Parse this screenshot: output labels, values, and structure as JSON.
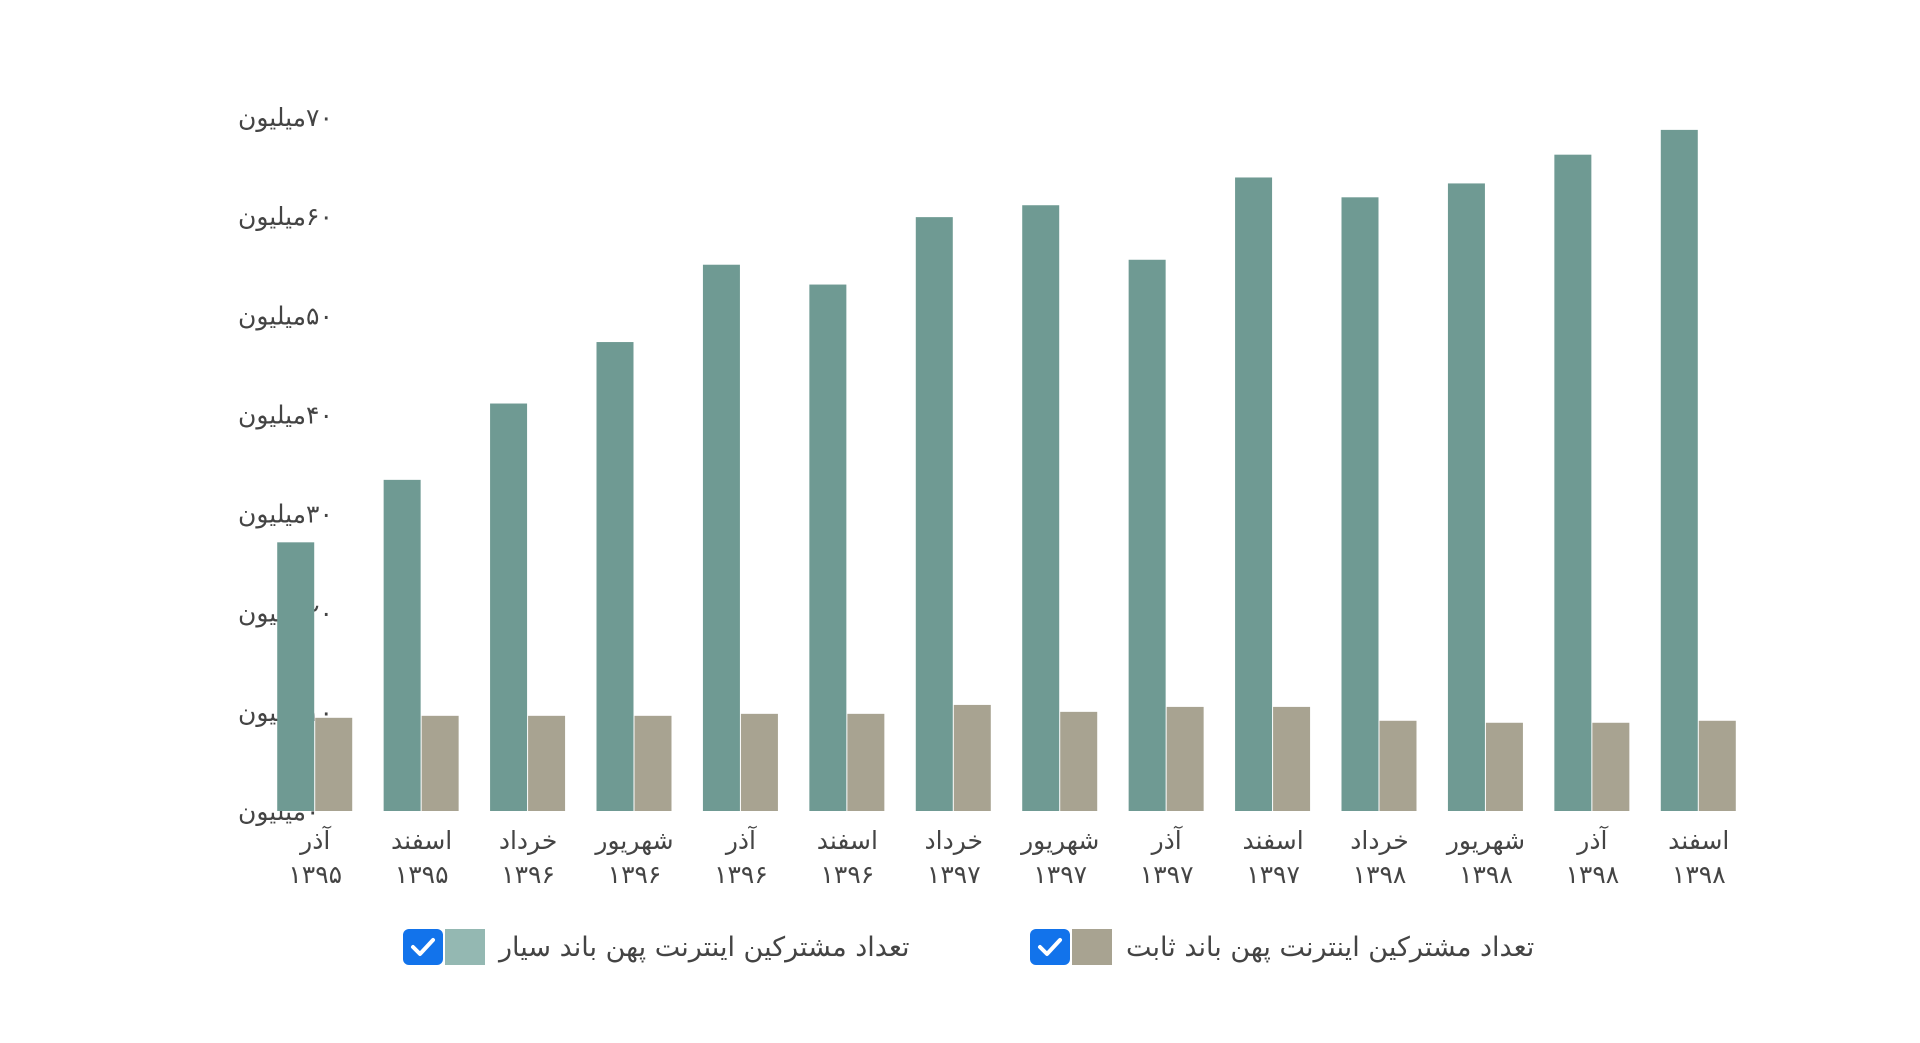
{
  "chart_data": {
    "type": "bar",
    "categories": [
      "آذر ۱۳۹۵",
      "اسفند ۱۳۹۵",
      "خرداد ۱۳۹۶",
      "شهریور ۱۳۹۶",
      "آذر ۱۳۹۶",
      "اسفند ۱۳۹۶",
      "خرداد ۱۳۹۷",
      "شهریور ۱۳۹۷",
      "آذر ۱۳۹۷",
      "اسفند ۱۳۹۷",
      "خرداد ۱۳۹۸",
      "شهریور ۱۳۹۸",
      "آذر ۱۳۹۸",
      "اسفند ۱۳۹۸"
    ],
    "category_lines": [
      [
        "آذر",
        "۱۳۹۵"
      ],
      [
        "اسفند",
        "۱۳۹۵"
      ],
      [
        "خرداد",
        "۱۳۹۶"
      ],
      [
        "شهریور",
        "۱۳۹۶"
      ],
      [
        "آذر",
        "۱۳۹۶"
      ],
      [
        "اسفند",
        "۱۳۹۶"
      ],
      [
        "خرداد",
        "۱۳۹۷"
      ],
      [
        "شهریور",
        "۱۳۹۷"
      ],
      [
        "آذر",
        "۱۳۹۷"
      ],
      [
        "اسفند",
        "۱۳۹۷"
      ],
      [
        "خرداد",
        "۱۳۹۸"
      ],
      [
        "شهریور",
        "۱۳۹۸"
      ],
      [
        "آذر",
        "۱۳۹۸"
      ],
      [
        "اسفند",
        "۱۳۹۸"
      ]
    ],
    "series": [
      {
        "name": "تعداد مشترکین اینترنت پهن باند سیار",
        "color": "#6f9a93",
        "values": [
          27.1,
          33.4,
          41.1,
          47.3,
          55.1,
          53.1,
          59.9,
          61.1,
          55.6,
          63.9,
          61.9,
          63.3,
          66.2,
          68.7
        ]
      },
      {
        "name": "تعداد مشترکین اینترنت پهن باند ثابت",
        "color": "#a8a391",
        "values": [
          9.4,
          9.6,
          9.6,
          9.6,
          9.8,
          9.8,
          10.7,
          10.0,
          10.5,
          10.5,
          9.1,
          8.9,
          8.9,
          9.1
        ]
      }
    ],
    "y_unit": "million",
    "ylim": [
      0,
      70
    ],
    "yticks": [
      0,
      10,
      20,
      30,
      40,
      50,
      60,
      70
    ],
    "ytick_labels": [
      "۰میلیون",
      "۱۰میلیون",
      "۲۰میلیون",
      "۳۰میلیون",
      "۴۰میلیون",
      "۵۰میلیون",
      "۶۰میلیون",
      "۷۰میلیون"
    ],
    "grid": false,
    "legend_position": "bottom"
  },
  "legend": {
    "items": [
      {
        "label": "تعداد مشترکین اینترنت پهن باند ثابت",
        "color": "#a8a391",
        "checked": true,
        "check_color": "#1273eb",
        "check_icon": "checkmark-icon"
      },
      {
        "label": "تعداد مشترکین اینترنت پهن باند سیار",
        "color": "#94b8b2",
        "checked": true,
        "check_color": "#1273eb",
        "check_icon": "checkmark-icon"
      }
    ]
  }
}
